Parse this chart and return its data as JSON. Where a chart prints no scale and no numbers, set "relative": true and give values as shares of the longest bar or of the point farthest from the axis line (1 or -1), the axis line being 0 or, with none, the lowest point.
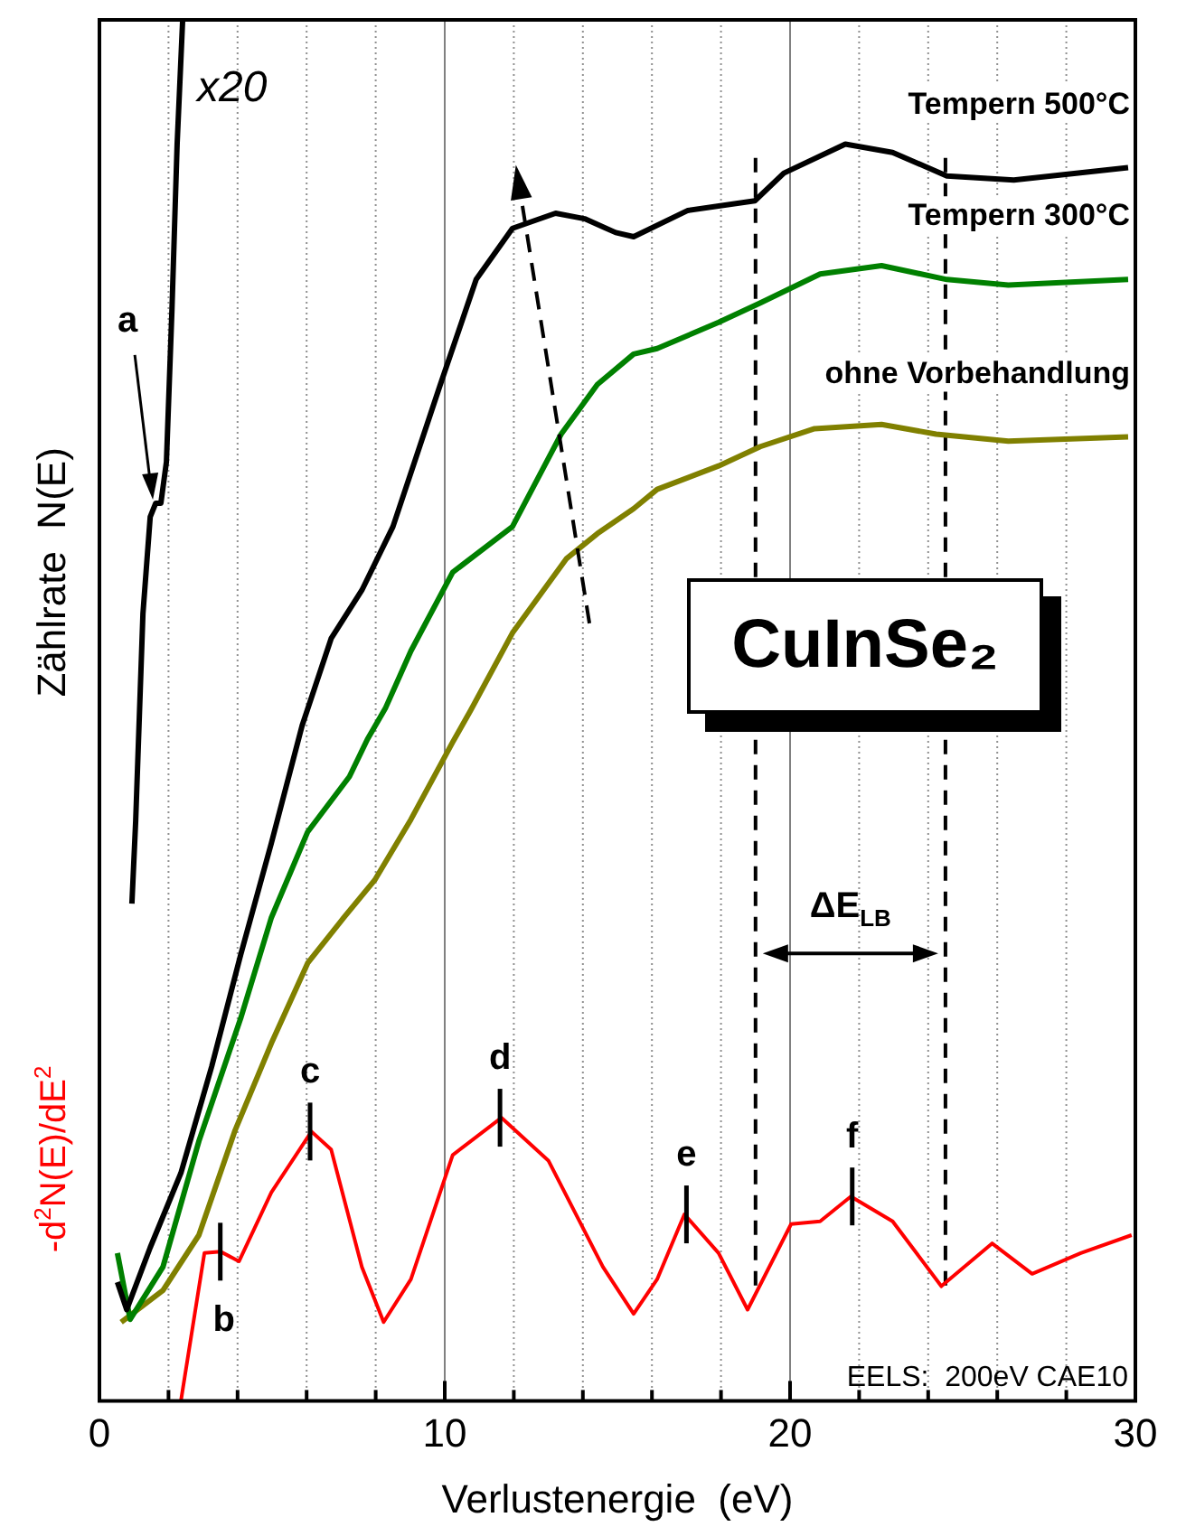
{
  "chart_data": {
    "type": "line",
    "xlabel": "Verlustenergie  (eV)",
    "ylabel": "Zählrate  N(E)",
    "y2label": "-d$^{2}$N(E)/dE$^{2}$",
    "relative": true,
    "grid": "x",
    "legend": false,
    "marker": "none",
    "line_style": "solid",
    "tick_labels": "x",
    "xlim": [
      0,
      30
    ],
    "xticks": [
      0,
      {
        "value": 2,
        "label": null
      },
      {
        "value": 4,
        "label": null
      },
      {
        "value": 6,
        "label": null
      },
      {
        "value": 8,
        "label": null
      },
      10,
      {
        "value": 12,
        "label": null
      },
      {
        "value": 14,
        "label": null
      },
      {
        "value": 16,
        "label": null
      },
      {
        "value": 18,
        "label": null
      },
      20,
      {
        "value": 22,
        "label": null
      },
      {
        "value": 24,
        "label": null
      },
      {
        "value": 26,
        "label": null
      },
      {
        "value": 28,
        "label": null
      },
      30
    ],
    "series": [
      {
        "name": "x20",
        "color": "#000000",
        "x": [
          0.94,
          1.05,
          1.26,
          1.47,
          1.63,
          1.78,
          1.94,
          2.1,
          2.25,
          2.41
        ],
        "values": [
          0.36,
          0.42,
          0.57,
          0.64,
          0.65,
          0.65,
          0.68,
          0.79,
          0.91,
          1.0
        ]
      },
      {
        "name": "Tempern 500°C",
        "color": "#000000",
        "x": [
          0.52,
          0.79,
          1.47,
          2.36,
          3.25,
          4.09,
          4.98,
          5.87,
          6.71,
          7.6,
          8.5,
          9.86,
          10.91,
          11.96,
          13.21,
          14.05,
          14.95,
          15.47,
          17.04,
          18.98,
          19.82,
          21.6,
          22.97,
          24.54,
          26.48,
          29.79
        ],
        "values": [
          0.086,
          0.066,
          0.111,
          0.165,
          0.242,
          0.323,
          0.404,
          0.489,
          0.552,
          0.587,
          0.633,
          0.735,
          0.812,
          0.849,
          0.86,
          0.856,
          0.846,
          0.843,
          0.862,
          0.869,
          0.889,
          0.91,
          0.904,
          0.887,
          0.884,
          0.893
        ]
      },
      {
        "name": "Tempern 300°C",
        "color": "#008000",
        "x": [
          0.52,
          0.89,
          1.84,
          2.88,
          4.09,
          4.98,
          6.03,
          7.24,
          7.76,
          8.29,
          9.02,
          10.23,
          11.96,
          13.37,
          14.42,
          15.47,
          16.15,
          17.93,
          19.14,
          20.87,
          22.65,
          24.54,
          26.32,
          29.79
        ],
        "values": [
          0.107,
          0.059,
          0.097,
          0.188,
          0.277,
          0.35,
          0.412,
          0.452,
          0.479,
          0.502,
          0.543,
          0.6,
          0.633,
          0.7,
          0.736,
          0.758,
          0.762,
          0.781,
          0.795,
          0.816,
          0.822,
          0.812,
          0.808,
          0.812
        ]
      },
      {
        "name": "ohne Vorbehandlung",
        "color": "#808000",
        "x": [
          0.63,
          1.84,
          2.88,
          3.93,
          4.98,
          6.03,
          7.08,
          7.97,
          9.02,
          10.23,
          10.75,
          11.96,
          13.53,
          14.42,
          15.47,
          16.15,
          17.93,
          19.14,
          20.71,
          22.65,
          24.23,
          26.32,
          29.79
        ],
        "values": [
          0.057,
          0.08,
          0.12,
          0.196,
          0.259,
          0.317,
          0.35,
          0.377,
          0.421,
          0.477,
          0.5,
          0.556,
          0.61,
          0.628,
          0.646,
          0.66,
          0.677,
          0.691,
          0.704,
          0.707,
          0.7,
          0.695,
          0.698
        ]
      },
      {
        "color": "#ff0000",
        "axis": "y2",
        "x": [
          2.36,
          3.04,
          3.51,
          4.04,
          4.98,
          6.14,
          6.71,
          7.6,
          8.23,
          9.02,
          10.23,
          11.64,
          13.0,
          14.58,
          15.47,
          16.15,
          16.94,
          17.93,
          18.77,
          20.03,
          20.87,
          21.76,
          22.97,
          24.38,
          25.85,
          27.01,
          28.42,
          29.89
        ],
        "values": [
          0.0,
          0.107,
          0.108,
          0.101,
          0.151,
          0.195,
          0.182,
          0.097,
          0.057,
          0.088,
          0.178,
          0.205,
          0.174,
          0.097,
          0.063,
          0.088,
          0.135,
          0.107,
          0.066,
          0.128,
          0.13,
          0.148,
          0.13,
          0.083,
          0.114,
          0.092,
          0.107,
          0.12
        ]
      }
    ],
    "ref_lines": [
      {
        "axis": "x",
        "value": 19.0,
        "line_style": "dashed"
      },
      {
        "axis": "x",
        "value": 24.5,
        "line_style": "dashed"
      }
    ],
    "annotations": [
      {
        "text": "a",
        "x": 1.6,
        "y": 0.65
      },
      {
        "text": "b",
        "x": 3.5,
        "y": 0.108
      },
      {
        "text": "c",
        "x": 6.1,
        "y": 0.195
      },
      {
        "text": "d",
        "x": 11.6,
        "y": 0.205
      },
      {
        "text": "e",
        "x": 17.0,
        "y": 0.135
      },
      {
        "text": "f",
        "x": 21.8,
        "y": 0.148
      },
      "CuInSe₂",
      "ΔE$_{LB}$",
      "EELS:  200eV CAE10"
    ]
  }
}
